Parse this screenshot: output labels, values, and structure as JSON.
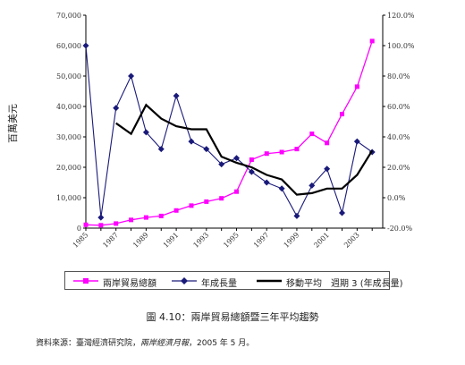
{
  "chart_data": {
    "type": "line",
    "title": "",
    "ylabel_left": "百萬美元",
    "ylabel_right": "",
    "xlabel": "",
    "left_axis": {
      "ylim": [
        0,
        70000
      ],
      "ticks": [
        "0",
        "10,000",
        "20,000",
        "30,000",
        "40,000",
        "50,000",
        "60,000",
        "70,000"
      ]
    },
    "right_axis": {
      "ylim": [
        -20,
        120
      ],
      "ticks": [
        "-20.0%",
        "0.0%",
        "20.0%",
        "40.0%",
        "60.0%",
        "80.0%",
        "100.0%",
        "120.0%"
      ]
    },
    "x_tick_labels": [
      "1985",
      "1987",
      "1989",
      "1991",
      "1993",
      "1995",
      "1997",
      "1999",
      "2001",
      "2003"
    ],
    "x": [
      1985,
      1986,
      1987,
      1988,
      1989,
      1990,
      1991,
      1992,
      1993,
      1994,
      1995,
      1996,
      1997,
      1998,
      1999,
      2000,
      2001,
      2002,
      2003,
      2004
    ],
    "series": [
      {
        "name": "兩岸貿易總額",
        "axis": "left",
        "color": "#ff00ff",
        "marker": "square",
        "values": [
          1100,
          950,
          1500,
          2700,
          3500,
          4000,
          5800,
          7400,
          8700,
          9800,
          12000,
          22500,
          24500,
          25000,
          26000,
          31000,
          28000,
          37500,
          46500,
          61500
        ]
      },
      {
        "name": "年成長量",
        "axis": "right",
        "color": "#1a1a7a",
        "marker": "diamond",
        "values": [
          100,
          -13,
          59,
          80,
          43,
          32,
          67,
          37,
          32,
          22,
          26,
          17,
          10,
          6,
          -12,
          8,
          19,
          -10,
          37,
          30
        ]
      },
      {
        "name": "移動平均　週期 3 (年成長量)",
        "axis": "right",
        "color": "#000000",
        "marker": "none",
        "values": [
          null,
          null,
          49,
          42,
          61,
          52,
          47,
          45,
          45,
          27,
          23,
          20,
          15,
          12,
          2,
          3,
          6,
          6,
          15,
          31
        ]
      }
    ]
  },
  "caption": "圖 4.10：兩岸貿易總額暨三年平均趨勢",
  "source_prefix": "資料來源：臺灣經濟研究院，",
  "source_italic": "兩岸經濟月報",
  "source_suffix": "，2005 年 5 月。"
}
